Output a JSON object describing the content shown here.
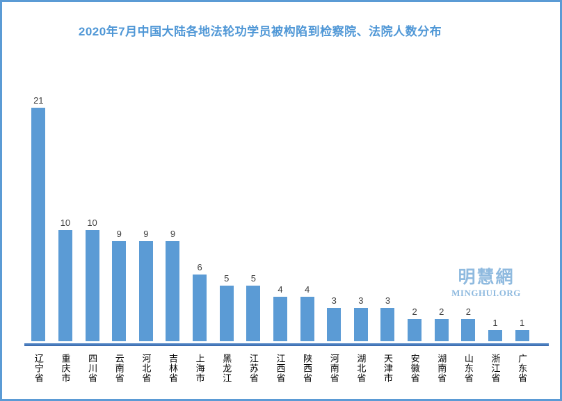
{
  "frame": {
    "border_color": "#5b9bd5",
    "background": "#ffffff"
  },
  "title": {
    "text": "2020年7月中国大陆各地法轮功学员被构陷到检察院、法院人数分布",
    "color": "#4f97d6"
  },
  "watermark": {
    "cjk": "明慧網",
    "latin": "MINGHUI.ORG",
    "color": "#8fbadf"
  },
  "chart_data": {
    "type": "bar",
    "title": "2020年7月中国大陆各地法轮功学员被构陷到检察院、法院人数分布",
    "categories": [
      "辽宁省",
      "重庆市",
      "四川省",
      "云南省",
      "河北省",
      "吉林省",
      "上海市",
      "黑龙江",
      "江苏省",
      "江西省",
      "陕西省",
      "河南省",
      "湖北省",
      "天津市",
      "安徽省",
      "湖南省",
      "山东省",
      "浙江省",
      "广东省"
    ],
    "values": [
      21,
      10,
      10,
      9,
      9,
      9,
      6,
      5,
      5,
      4,
      4,
      3,
      3,
      3,
      2,
      2,
      2,
      1,
      1
    ],
    "xlabel": "",
    "ylabel": "",
    "ylim": [
      0,
      21
    ],
    "grid": false,
    "legend_position": "none",
    "data_labels": true,
    "bar_color": "#5b9bd5",
    "axis_line_color": "#4a7fc0",
    "value_label_color": "#3f3f3f",
    "category_label_color": "#000000"
  }
}
